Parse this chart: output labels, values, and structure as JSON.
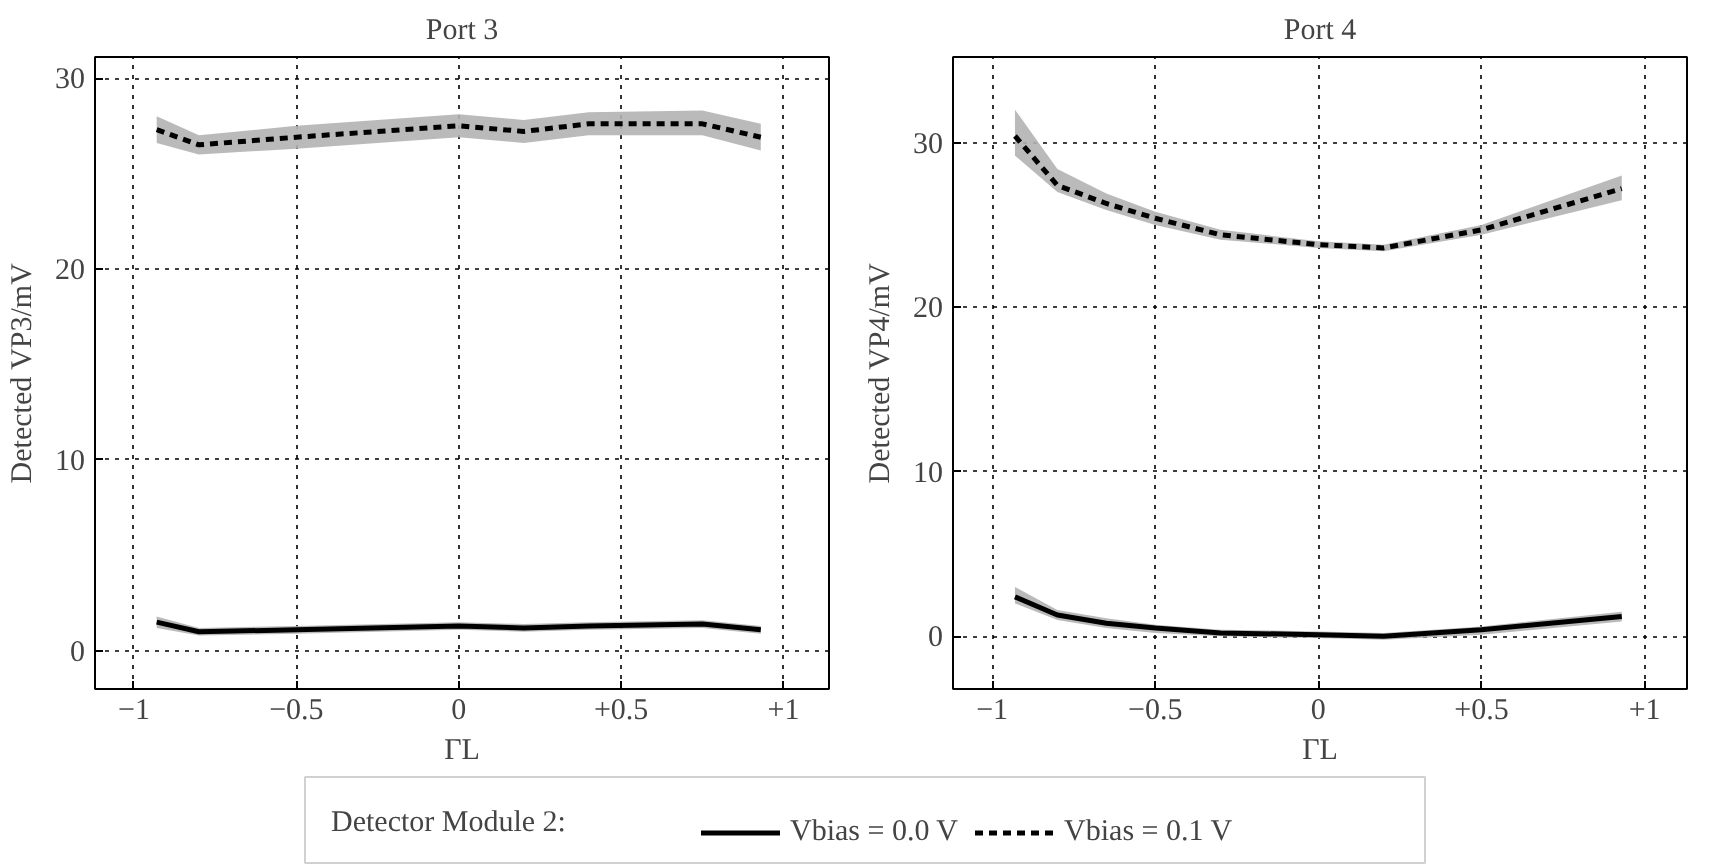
{
  "chart_data": [
    {
      "type": "line",
      "title": "Port 3",
      "xlabel": "ΓL",
      "ylabel": "Detected VP3/mV",
      "legend_title": "Detector Module 2:",
      "legend": "bottom",
      "grid": true,
      "xlim": [
        -1.12,
        1.14
      ],
      "ylim": [
        -2.0,
        31.1
      ],
      "xticks": [
        {
          "value": -1,
          "label": "−1"
        },
        {
          "value": -0.5,
          "label": "−0.5"
        },
        0,
        {
          "value": 0.5,
          "label": "+0.5"
        },
        {
          "value": 1,
          "label": "+1"
        }
      ],
      "yticks": [
        0,
        10,
        20,
        30
      ],
      "x": [
        -0.93,
        -0.8,
        -0.5,
        0,
        0.2,
        0.4,
        0.75,
        0.93
      ],
      "series": [
        {
          "name": "Vbias = 0.0 V",
          "color": "#000000",
          "line_style": "solid",
          "values": [
            1.5,
            1.0,
            1.1,
            1.3,
            1.2,
            1.3,
            1.4,
            1.1
          ],
          "lower": [
            1.2,
            0.8,
            0.9,
            1.1,
            1.0,
            1.1,
            1.2,
            0.9
          ],
          "upper": [
            1.8,
            1.2,
            1.3,
            1.5,
            1.4,
            1.5,
            1.6,
            1.3
          ]
        },
        {
          "name": "Vbias = 0.1 V",
          "color": "#000000",
          "line_style": "dashed",
          "values": [
            27.3,
            26.5,
            26.9,
            27.5,
            27.2,
            27.6,
            27.6,
            26.9
          ],
          "lower": [
            26.6,
            26.0,
            26.3,
            26.9,
            26.6,
            27.0,
            27.0,
            26.2
          ],
          "upper": [
            28.0,
            27.0,
            27.5,
            28.1,
            27.8,
            28.2,
            28.3,
            27.6
          ]
        }
      ]
    },
    {
      "type": "line",
      "title": "Port 4",
      "xlabel": "ΓL",
      "ylabel": "Detected VP4/mV",
      "grid": true,
      "xlim": [
        -1.12,
        1.13
      ],
      "ylim": [
        -3.2,
        35.2
      ],
      "xticks": [
        {
          "value": -1,
          "label": "−1"
        },
        {
          "value": -0.5,
          "label": "−0.5"
        },
        0,
        {
          "value": 0.5,
          "label": "+0.5"
        },
        {
          "value": 1,
          "label": "+1"
        }
      ],
      "yticks": [
        0,
        10,
        20,
        30
      ],
      "x": [
        -0.93,
        -0.8,
        -0.65,
        -0.5,
        -0.3,
        0,
        0.2,
        0.5,
        0.93
      ],
      "series": [
        {
          "color": "#000000",
          "line_style": "solid",
          "values": [
            2.4,
            1.3,
            0.8,
            0.5,
            0.2,
            0.1,
            0.0,
            0.4,
            1.2
          ],
          "lower": [
            2.0,
            1.0,
            0.5,
            0.2,
            0.0,
            -0.1,
            -0.2,
            0.1,
            0.9
          ],
          "upper": [
            3.0,
            1.6,
            1.1,
            0.7,
            0.4,
            0.3,
            0.2,
            0.6,
            1.5
          ]
        },
        {
          "color": "#000000",
          "line_style": "dashed",
          "values": [
            30.4,
            27.4,
            26.3,
            25.4,
            24.4,
            23.8,
            23.6,
            24.7,
            27.2
          ],
          "lower": [
            29.2,
            27.0,
            25.9,
            25.0,
            24.1,
            23.6,
            23.4,
            24.4,
            26.5
          ],
          "upper": [
            32.0,
            28.4,
            26.9,
            25.8,
            24.7,
            24.0,
            23.8,
            25.0,
            28.0
          ]
        }
      ]
    }
  ]
}
